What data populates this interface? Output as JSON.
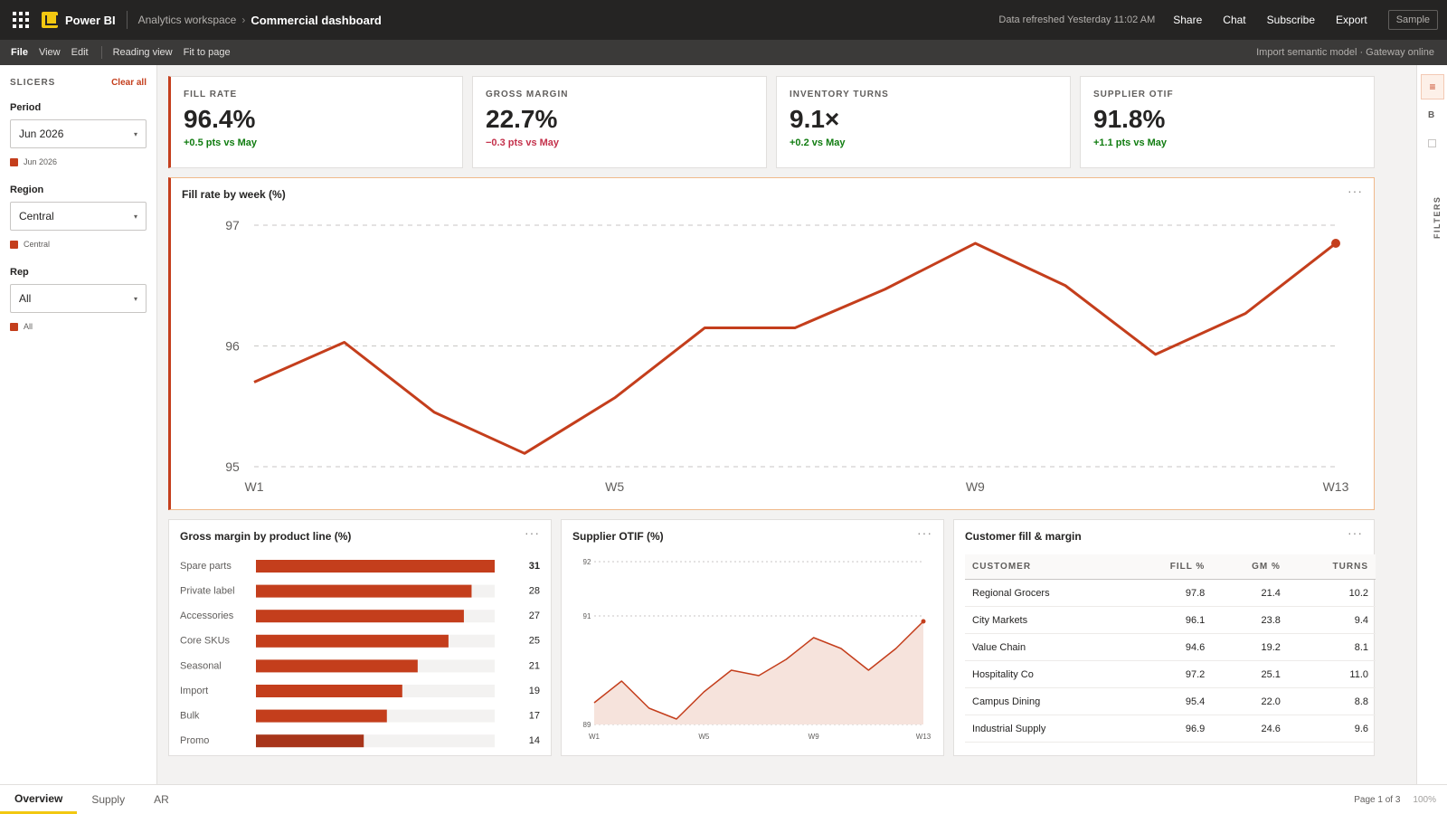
{
  "topbar": {
    "app_name": "Power BI",
    "workspace": "Analytics workspace",
    "breadcrumb_sep": "›",
    "report_name": "Commercial dashboard",
    "refresh": "Data refreshed Yesterday 11:02 AM",
    "actions": [
      "Share",
      "Chat",
      "Subscribe",
      "Export"
    ],
    "sample": "Sample"
  },
  "menubar": {
    "items": [
      "File",
      "View",
      "Edit"
    ],
    "view_items": [
      "Reading view",
      "Fit to page"
    ],
    "model_status": "Import semantic model · Gateway online"
  },
  "slicers": {
    "title": "SLICERS",
    "clear": "Clear all",
    "groups": [
      {
        "label": "Period",
        "value": "Jun 2026",
        "chip": "Jun 2026"
      },
      {
        "label": "Region",
        "value": "Central",
        "chip": "Central"
      },
      {
        "label": "Rep",
        "value": "All",
        "chip": "All"
      }
    ]
  },
  "rail": {
    "b_label": "B",
    "filters_label": "FILTERS"
  },
  "kpis": [
    {
      "title": "FILL RATE",
      "value": "96.4%",
      "delta": "+0.5 pts vs May",
      "trend": "positive"
    },
    {
      "title": "GROSS MARGIN",
      "value": "22.7%",
      "delta": "−0.3 pts vs May",
      "trend": "negative"
    },
    {
      "title": "INVENTORY TURNS",
      "value": "9.1×",
      "delta": "+0.2 vs May",
      "trend": "positive"
    },
    {
      "title": "SUPPLIER OTIF",
      "value": "91.8%",
      "delta": "+1.1 pts vs May",
      "trend": "positive"
    }
  ],
  "colors": {
    "accent": "#c43e1c",
    "accent_dark": "#a8351a",
    "positive": "#107c10",
    "negative": "#c4314b",
    "brand_yellow": "#f2c811"
  },
  "chart_data": [
    {
      "type": "line",
      "title": "Fill rate by week (%)",
      "x": [
        "W1",
        "W2",
        "W3",
        "W4",
        "W5",
        "W6",
        "W7",
        "W8",
        "W9",
        "W10",
        "W11",
        "W12",
        "W13"
      ],
      "x_tick_labels": [
        "W1",
        "W5",
        "W9",
        "W13"
      ],
      "series": [
        {
          "values": [
            95.7,
            96.03,
            95.45,
            95.11,
            95.57,
            96.15,
            96.15,
            96.47,
            96.85,
            96.5,
            95.93,
            96.27,
            96.85
          ]
        }
      ],
      "ylim": [
        95,
        97
      ],
      "y_ticks": [
        95,
        96,
        97
      ],
      "grid": true
    },
    {
      "type": "bar",
      "orientation": "horizontal",
      "title": "Gross margin by product line (%)",
      "categories": [
        "Spare parts",
        "Private label",
        "Accessories",
        "Core SKUs",
        "Seasonal",
        "Import",
        "Bulk",
        "Promo"
      ],
      "values": [
        31,
        28,
        27,
        25,
        21,
        19,
        17,
        14
      ],
      "xlim": [
        0,
        31
      ]
    },
    {
      "type": "area",
      "title": "Supplier OTIF (%)",
      "x": [
        "W1",
        "W2",
        "W3",
        "W4",
        "W5",
        "W6",
        "W7",
        "W8",
        "W9",
        "W10",
        "W11",
        "W12",
        "W13"
      ],
      "x_tick_labels": [
        "W1",
        "W5",
        "W9",
        "W13"
      ],
      "series": [
        {
          "values": [
            89.4,
            89.8,
            89.3,
            89.1,
            89.6,
            90.0,
            89.9,
            90.2,
            90.6,
            90.4,
            90.0,
            90.4,
            90.9
          ]
        }
      ],
      "ylim": [
        89,
        92
      ],
      "y_ticks": [
        89,
        91,
        92
      ],
      "grid": true
    }
  ],
  "table": {
    "title": "Customer fill & margin",
    "columns": [
      "CUSTOMER",
      "FILL %",
      "GM %",
      "TURNS"
    ],
    "rows": [
      [
        "Regional Grocers",
        "97.8",
        "21.4",
        "10.2"
      ],
      [
        "City Markets",
        "96.1",
        "23.8",
        "9.4"
      ],
      [
        "Value Chain",
        "94.6",
        "19.2",
        "8.1"
      ],
      [
        "Hospitality Co",
        "97.2",
        "25.1",
        "11.0"
      ],
      [
        "Campus Dining",
        "95.4",
        "22.0",
        "8.8"
      ],
      [
        "Industrial Supply",
        "96.9",
        "24.6",
        "9.6"
      ]
    ]
  },
  "pages": {
    "tabs": [
      "Overview",
      "Supply",
      "AR"
    ],
    "active": "Overview",
    "indicator": "Page 1 of 3",
    "zoom": "100%"
  }
}
